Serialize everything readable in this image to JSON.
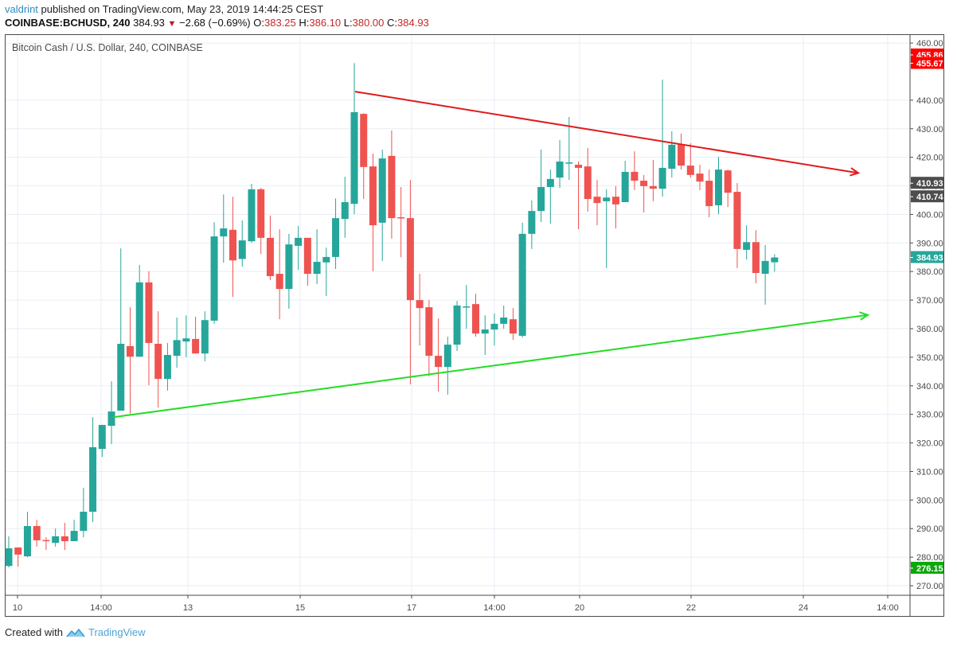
{
  "header": {
    "author": "valdrint",
    "published_text": "published on TradingView.com, May 23, 2019 14:44:25 CEST",
    "symbol": "COINBASE:BCHUSD, 240",
    "last_price": "384.93",
    "change_arrow": "▼",
    "change": "−2.68 (−0.69%)",
    "ohlc": {
      "o_label": "O:",
      "o": "383.25",
      "h_label": "H:",
      "h": "386.10",
      "l_label": "L:",
      "l": "380.00",
      "c_label": "C:",
      "c": "384.93"
    }
  },
  "legend_title": "Bitcoin Cash / U.S. Dollar, 240, COINBASE",
  "footer": {
    "created_with": "Created with",
    "brand": "TradingView"
  },
  "colors": {
    "up": "#26a69a",
    "down": "#ef5350",
    "grid": "#e8eef4",
    "axis_text": "#4a4a4a",
    "resistance_line": "#e01b1b",
    "support_line": "#22dd22",
    "label_red": "#ff0000",
    "label_dark": "#4d4d4d",
    "label_teal": "#26a69a",
    "label_green": "#0aa80a"
  },
  "chart_data": {
    "type": "candlestick",
    "title": "Bitcoin Cash / U.S. Dollar, 240, COINBASE",
    "xlabel": "",
    "ylabel": "",
    "ylim": [
      265,
      462
    ],
    "grid": true,
    "price_ticks": [
      270,
      280,
      290,
      300,
      310,
      320,
      330,
      340,
      350,
      360,
      370,
      380,
      390,
      400,
      410,
      420,
      430,
      440,
      460
    ],
    "price_tick_labels": [
      "270.00",
      "280.00",
      "290.00",
      "300.00",
      "310.00",
      "320.00",
      "330.00",
      "340.00",
      "350.00",
      "360.00",
      "370.00",
      "380.00",
      "390.00",
      "400.00",
      "410.00",
      "420.00",
      "430.00",
      "440.00",
      "460.00"
    ],
    "time_ticks": [
      {
        "label": "10",
        "x": 22
      },
      {
        "label": "14:00",
        "x": 127
      },
      {
        "label": "13",
        "x": 236
      },
      {
        "label": "15",
        "x": 377
      },
      {
        "label": "17",
        "x": 517
      },
      {
        "label": "14:00",
        "x": 621
      },
      {
        "label": "20",
        "x": 728
      },
      {
        "label": "22",
        "x": 868
      },
      {
        "label": "24",
        "x": 1009
      },
      {
        "label": "14:00",
        "x": 1115
      }
    ],
    "price_labels": [
      {
        "value": "455.86",
        "price": 455.86,
        "color": "label_red"
      },
      {
        "value": "455.67",
        "price": 452.9,
        "color": "label_red"
      },
      {
        "value": "410.93",
        "price": 410.93,
        "color": "label_dark"
      },
      {
        "value": "410.74",
        "price": 406.2,
        "color": "label_dark"
      },
      {
        "value": "384.93",
        "price": 384.93,
        "color": "label_teal"
      },
      {
        "value": "276.15",
        "price": 276.15,
        "color": "label_green"
      }
    ],
    "candles": [
      [
        276.9,
        287.3,
        276.4,
        283.1
      ],
      [
        283.4,
        283.4,
        276.7,
        280.9
      ],
      [
        280.3,
        295.9,
        280.0,
        290.9
      ],
      [
        290.9,
        293.1,
        283.7,
        285.9
      ],
      [
        286.0,
        287.0,
        282.5,
        285.7
      ],
      [
        285.0,
        290.0,
        283.7,
        287.3
      ],
      [
        287.3,
        292.0,
        282.5,
        285.6
      ],
      [
        285.6,
        293.1,
        285.6,
        289.2
      ],
      [
        289.2,
        304.3,
        287.0,
        295.9
      ],
      [
        295.9,
        329.0,
        292.3,
        318.5
      ],
      [
        317.9,
        326.3,
        315.1,
        326.3
      ],
      [
        326.0,
        341.6,
        319.6,
        331.0
      ],
      [
        331.3,
        388.1,
        331.3,
        354.7
      ],
      [
        353.9,
        367.5,
        330.2,
        350.2
      ],
      [
        350.2,
        382.3,
        350.2,
        376.2
      ],
      [
        376.2,
        380.1,
        340.2,
        355.0
      ],
      [
        354.7,
        366.1,
        332.4,
        342.4
      ],
      [
        342.4,
        355.0,
        338.3,
        350.8
      ],
      [
        350.5,
        363.9,
        346.3,
        356.0
      ],
      [
        355.5,
        364.7,
        350.0,
        356.6
      ],
      [
        356.4,
        364.2,
        351.3,
        351.3
      ],
      [
        351.3,
        366.1,
        348.6,
        363.0
      ],
      [
        362.8,
        397.3,
        361.7,
        392.3
      ],
      [
        392.3,
        407.0,
        383.1,
        395.1
      ],
      [
        394.6,
        406.2,
        371.1,
        383.9
      ],
      [
        384.4,
        397.9,
        381.7,
        390.9
      ],
      [
        390.6,
        410.7,
        390.1,
        408.8
      ],
      [
        408.8,
        409.3,
        386.2,
        391.8
      ],
      [
        391.8,
        399.6,
        377.0,
        378.4
      ],
      [
        379.2,
        394.8,
        363.3,
        373.9
      ],
      [
        373.9,
        393.2,
        367.0,
        389.5
      ],
      [
        389.0,
        396.0,
        380.6,
        391.8
      ],
      [
        391.8,
        391.8,
        375.0,
        379.2
      ],
      [
        379.2,
        394.8,
        375.6,
        383.4
      ],
      [
        383.2,
        388.4,
        371.4,
        385.1
      ],
      [
        385.1,
        405.6,
        380.9,
        398.7
      ],
      [
        398.4,
        413.2,
        391.8,
        404.3
      ],
      [
        403.7,
        453.0,
        400.1,
        435.8
      ],
      [
        435.2,
        435.4,
        405.4,
        416.6
      ],
      [
        416.8,
        421.3,
        380.1,
        396.2
      ],
      [
        397.1,
        422.7,
        383.7,
        419.6
      ],
      [
        420.5,
        429.4,
        391.5,
        398.7
      ],
      [
        399.0,
        409.6,
        385.0,
        398.7
      ],
      [
        398.7,
        412.1,
        340.5,
        370.0
      ],
      [
        370.0,
        379.2,
        354.1,
        367.2
      ],
      [
        367.5,
        370.0,
        343.3,
        350.5
      ],
      [
        350.5,
        363.6,
        338.0,
        346.6
      ],
      [
        346.6,
        357.2,
        336.9,
        354.4
      ],
      [
        354.4,
        369.7,
        352.2,
        368.1
      ],
      [
        367.5,
        375.3,
        360.0,
        367.8
      ],
      [
        368.6,
        372.2,
        357.2,
        358.3
      ],
      [
        358.3,
        364.7,
        350.8,
        359.7
      ],
      [
        359.7,
        365.3,
        354.1,
        361.7
      ],
      [
        361.7,
        368.1,
        360.0,
        363.9
      ],
      [
        363.3,
        367.2,
        356.1,
        358.3
      ],
      [
        357.5,
        397.1,
        356.9,
        393.2
      ],
      [
        393.2,
        404.9,
        387.9,
        401.2
      ],
      [
        401.2,
        422.7,
        397.3,
        409.6
      ],
      [
        409.6,
        415.7,
        396.8,
        412.4
      ],
      [
        412.9,
        426.0,
        409.3,
        418.5
      ],
      [
        418.0,
        434.1,
        412.1,
        418.2
      ],
      [
        417.4,
        418.5,
        394.8,
        416.3
      ],
      [
        416.8,
        423.3,
        401.0,
        405.4
      ],
      [
        406.2,
        412.1,
        396.2,
        404.0
      ],
      [
        404.6,
        408.8,
        381.2,
        405.9
      ],
      [
        406.2,
        409.9,
        395.1,
        403.5
      ],
      [
        404.3,
        418.8,
        404.3,
        414.9
      ],
      [
        414.9,
        422.1,
        408.5,
        411.8
      ],
      [
        411.8,
        413.8,
        400.7,
        409.9
      ],
      [
        409.9,
        419.1,
        404.6,
        409.0
      ],
      [
        409.0,
        447.2,
        406.2,
        416.3
      ],
      [
        416.0,
        429.1,
        412.9,
        424.4
      ],
      [
        424.4,
        428.3,
        415.7,
        417.1
      ],
      [
        417.1,
        424.9,
        412.9,
        413.8
      ],
      [
        414.3,
        417.4,
        408.5,
        411.5
      ],
      [
        411.8,
        415.7,
        399.0,
        402.9
      ],
      [
        403.2,
        420.2,
        400.1,
        415.7
      ],
      [
        415.4,
        415.7,
        402.6,
        407.6
      ],
      [
        407.9,
        411.0,
        381.2,
        387.9
      ],
      [
        387.6,
        396.2,
        384.2,
        390.3
      ],
      [
        390.3,
        394.5,
        375.9,
        379.5
      ],
      [
        379.2,
        389.3,
        368.4,
        383.7
      ],
      [
        383.25,
        386.1,
        380.0,
        384.93
      ]
    ],
    "candle_format": [
      "open",
      "high",
      "low",
      "close"
    ],
    "candle_interval": "240",
    "trendlines": [
      {
        "name": "resistance",
        "color": "resistance_line",
        "x1": 446,
        "p1": 443.0,
        "x2": 1078,
        "p2": 414.5,
        "arrow": true
      },
      {
        "name": "support",
        "color": "support_line",
        "x1": 142,
        "p1": 329.0,
        "x2": 1090,
        "p2": 364.8,
        "arrow": true
      }
    ]
  }
}
